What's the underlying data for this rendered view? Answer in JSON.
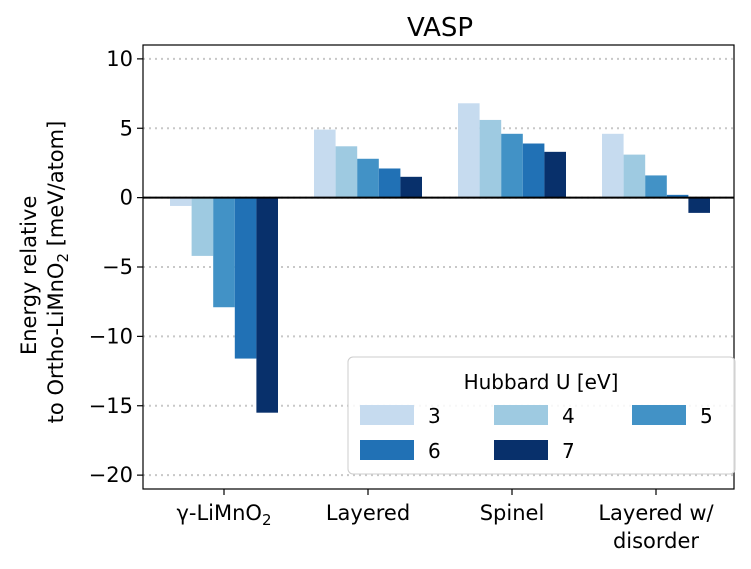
{
  "chart_data": {
    "type": "bar",
    "title": "VASP",
    "ylabel_line1": "Energy relative",
    "ylabel_line2_prefix": "to Ortho-LiMnO",
    "ylabel_line2_sub": "2",
    "ylabel_line2_suffix": " [meV/atom]",
    "ylim": [
      -21,
      11
    ],
    "yticks": [
      10,
      5,
      0,
      -5,
      -10,
      -15,
      -20
    ],
    "ytick_labels": [
      "10",
      "5",
      "0",
      "−5",
      "−10",
      "−15",
      "−20"
    ],
    "grid": "horizontal dotted",
    "categories": [
      {
        "main": "γ-LiMnO",
        "sub": "2",
        "line2": ""
      },
      {
        "main": "Layered",
        "sub": "",
        "line2": ""
      },
      {
        "main": "Spinel",
        "sub": "",
        "line2": ""
      },
      {
        "main": "Layered w/",
        "sub": "",
        "line2": "disorder"
      }
    ],
    "legend": {
      "title": "Hubbard U [eV]",
      "placement": "lower-right",
      "ncol": 3
    },
    "series": [
      {
        "name": "3",
        "color": "#c6dbef",
        "values": [
          -0.6,
          4.9,
          6.8,
          4.6
        ]
      },
      {
        "name": "4",
        "color": "#9ecae1",
        "values": [
          -4.2,
          3.7,
          5.6,
          3.1
        ]
      },
      {
        "name": "5",
        "color": "#4292c6",
        "values": [
          -7.9,
          2.8,
          4.6,
          1.6
        ]
      },
      {
        "name": "6",
        "color": "#2171b5",
        "values": [
          -11.6,
          2.1,
          3.9,
          0.2
        ]
      },
      {
        "name": "7",
        "color": "#08306b",
        "values": [
          -15.5,
          1.5,
          3.3,
          -1.1
        ]
      }
    ]
  }
}
